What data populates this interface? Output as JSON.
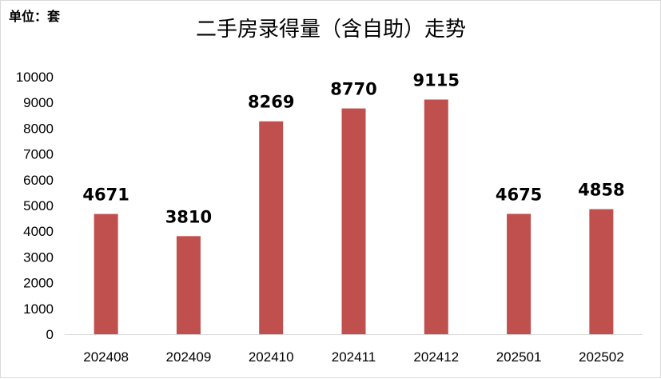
{
  "unit_label": "单位：套",
  "chart_data": {
    "type": "bar",
    "title": "二手房录得量（含自助）走势",
    "xlabel": "",
    "ylabel": "",
    "categories": [
      "202408",
      "202409",
      "202410",
      "202411",
      "202412",
      "202501",
      "202502"
    ],
    "values": [
      4671,
      3810,
      8269,
      8770,
      9115,
      4675,
      4858
    ],
    "data_labels": [
      "4671",
      "3810",
      "8269",
      "8770",
      "9115",
      "4675",
      "4858"
    ],
    "ylim": [
      0,
      10000
    ],
    "yticks": [
      0,
      1000,
      2000,
      3000,
      4000,
      5000,
      6000,
      7000,
      8000,
      9000,
      10000
    ],
    "ytick_labels": [
      "0",
      "1000",
      "2000",
      "3000",
      "4000",
      "5000",
      "6000",
      "7000",
      "8000",
      "9000",
      "10000"
    ],
    "grid": false,
    "legend": "none",
    "bar_color": "#c0504d",
    "axis_color": "#d9d9d9"
  }
}
